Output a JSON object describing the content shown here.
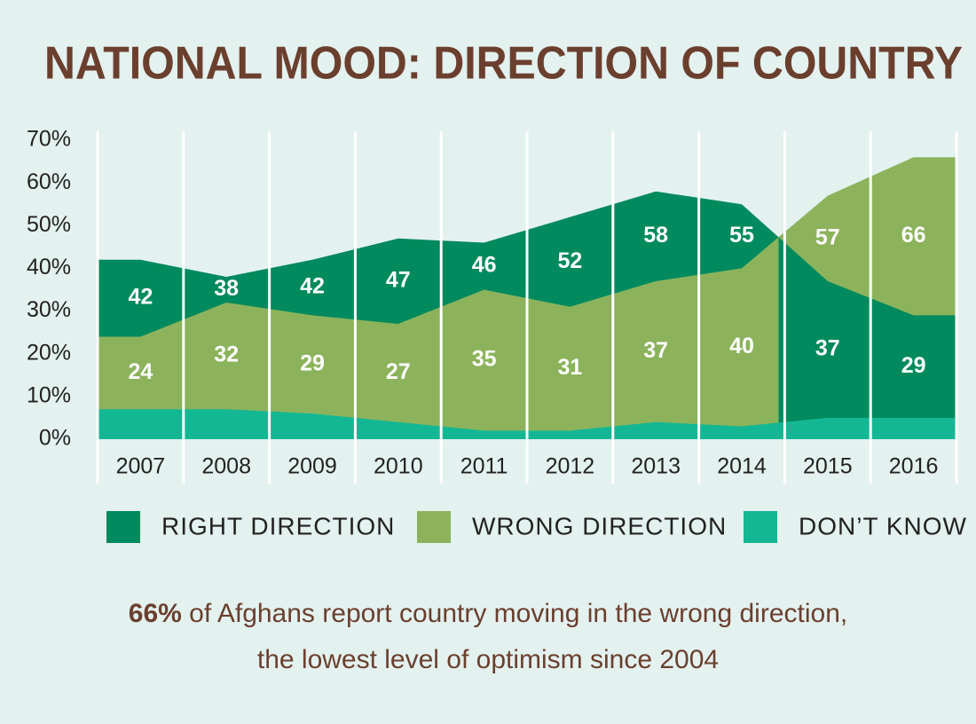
{
  "chart_data": {
    "type": "area",
    "title": "NATIONAL MOOD: DIRECTION OF COUNTRY",
    "categories": [
      "2007",
      "2008",
      "2009",
      "2010",
      "2011",
      "2012",
      "2013",
      "2014",
      "2015",
      "2016"
    ],
    "series": [
      {
        "name": "RIGHT DIRECTION",
        "color": "#008a5e",
        "values": [
          42,
          38,
          42,
          47,
          46,
          52,
          58,
          55,
          37,
          29
        ]
      },
      {
        "name": "WRONG DIRECTION",
        "color": "#8cb35c",
        "values": [
          24,
          32,
          29,
          27,
          35,
          31,
          37,
          40,
          57,
          66
        ]
      },
      {
        "name": "DON’T KNOW",
        "color": "#14b794",
        "values": [
          7,
          7,
          6,
          4,
          2,
          2,
          4,
          3,
          5,
          5
        ]
      }
    ],
    "ylim": [
      0,
      70
    ],
    "yticks": [
      {
        "value": 0,
        "label": "0%"
      },
      {
        "value": 10,
        "label": "10%"
      },
      {
        "value": 20,
        "label": "20%"
      },
      {
        "value": 30,
        "label": "30%"
      },
      {
        "value": 40,
        "label": "40%"
      },
      {
        "value": 50,
        "label": "50%"
      },
      {
        "value": 60,
        "label": "60%"
      },
      {
        "value": 70,
        "label": "70%"
      }
    ],
    "note": {
      "highlight": "66%",
      "line1": " of Afghans report country moving in the wrong direction,",
      "line2": "the lowest level of optimism since 2004"
    }
  }
}
